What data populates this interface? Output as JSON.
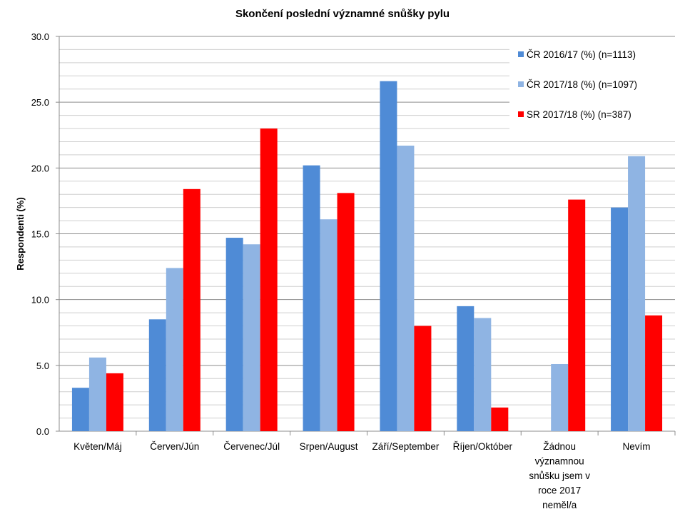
{
  "chart_data": {
    "type": "bar",
    "title": "Skončení poslední významné snůšky pylu",
    "xlabel": "",
    "ylabel": "Respondenti (%)",
    "ylim": [
      0,
      30
    ],
    "yticks": [
      "0.0",
      "5.0",
      "10.0",
      "15.0",
      "20.0",
      "25.0",
      "30.0"
    ],
    "grid": true,
    "legend_position": "top-right",
    "categories": [
      [
        "Květen/Máj"
      ],
      [
        "Červen/Jún"
      ],
      [
        "Červenec/Júl"
      ],
      [
        "Srpen/August"
      ],
      [
        "Září/September"
      ],
      [
        "Říjen/Október"
      ],
      [
        "Žádnou",
        "významnou",
        "snůšku jsem v",
        "roce  2017",
        "neměl/a"
      ],
      [
        "Nevím"
      ]
    ],
    "series": [
      {
        "name": "ČR 2016/17 (%) (n=1113)",
        "color": "#4f8bd6",
        "values": [
          3.3,
          8.5,
          14.7,
          20.2,
          26.6,
          9.5,
          null,
          17.0
        ]
      },
      {
        "name": "ČR 2017/18 (%) (n=1097)",
        "color": "#8fb4e3",
        "values": [
          5.6,
          12.4,
          14.2,
          16.1,
          21.7,
          8.6,
          5.1,
          20.9
        ]
      },
      {
        "name": "SR 2017/18 (%) (n=387)",
        "color": "#ff0000",
        "values": [
          4.4,
          18.4,
          23.0,
          18.1,
          8.0,
          1.8,
          17.6,
          8.8
        ]
      }
    ]
  }
}
